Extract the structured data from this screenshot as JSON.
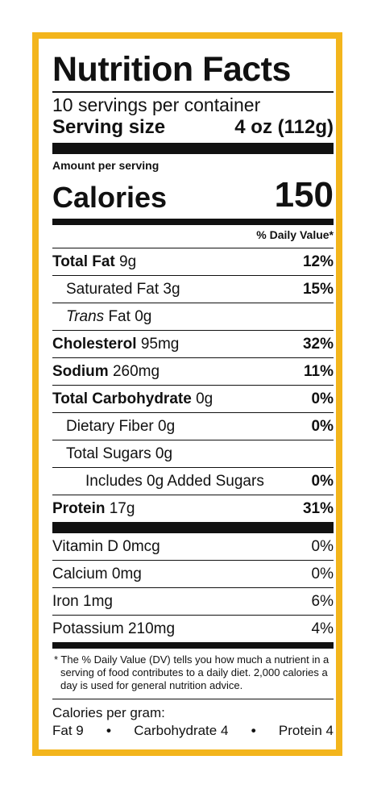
{
  "colors": {
    "border": "#f3b51c",
    "ink": "#111111"
  },
  "label": {
    "title": "Nutrition Facts",
    "servings_per_container": "10 servings per container",
    "serving_size_label": "Serving size",
    "serving_size_value": "4 oz (112g)",
    "amount_per_serving": "Amount per serving",
    "calories_label": "Calories",
    "calories_value": "150",
    "dv_header": "% Daily Value*",
    "nutrients": [
      {
        "name": "Total Fat",
        "amount": "9g",
        "dv": "12%"
      },
      {
        "name": "Saturated Fat",
        "amount": "3g",
        "dv": "15%"
      },
      {
        "name": "Trans",
        "suffix": "Fat",
        "amount": "0g",
        "dv": ""
      },
      {
        "name": "Cholesterol",
        "amount": "95mg",
        "dv": "32%"
      },
      {
        "name": "Sodium",
        "amount": "260mg",
        "dv": "11%"
      },
      {
        "name": "Total Carbohydrate",
        "amount": "0g",
        "dv": "0%"
      },
      {
        "name": "Dietary Fiber",
        "amount": "0g",
        "dv": "0%"
      },
      {
        "name": "Total Sugars",
        "amount": "0g",
        "dv": ""
      },
      {
        "name": "Includes 0g Added Sugars",
        "amount": "",
        "dv": "0%"
      },
      {
        "name": "Protein",
        "amount": "17g",
        "dv": "31%"
      }
    ],
    "vitamins": [
      {
        "text": "Vitamin D 0mcg",
        "dv": "0%"
      },
      {
        "text": "Calcium 0mg",
        "dv": "0%"
      },
      {
        "text": "Iron 1mg",
        "dv": "6%"
      },
      {
        "text": "Potassium 210mg",
        "dv": "4%"
      }
    ],
    "footnote": "* The % Daily Value (DV) tells you how much a nutrient in a serving of food contributes to a daily diet. 2,000 calories a day is used for general nutrition advice.",
    "calories_per_gram_label": "Calories per gram:",
    "cpg": {
      "fat": "Fat 9",
      "carb": "Carbohydrate 4",
      "protein": "Protein 4",
      "separator": "•"
    }
  }
}
